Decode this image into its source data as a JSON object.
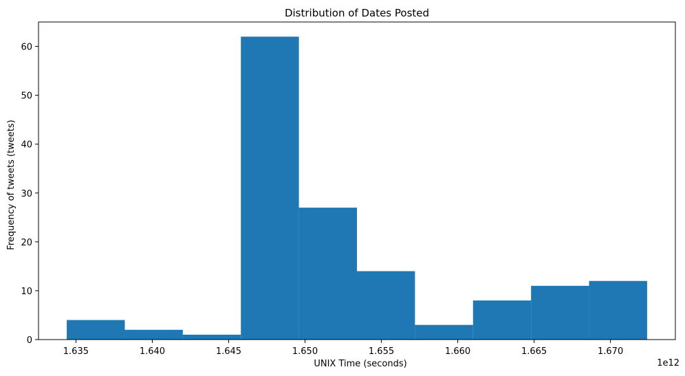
{
  "chart_data": {
    "type": "bar",
    "title": "Distribution of Dates Posted",
    "xlabel": "UNIX Time (seconds)",
    "ylabel": "Frequency of tweets (tweets)",
    "x_offset_label": "1e12",
    "xlim": [
      1.63255,
      1.67425
    ],
    "ylim": [
      0,
      65
    ],
    "grid": false,
    "bar_color": "#1f77b4",
    "bin_edges": [
      1.6344,
      1.6382,
      1.642,
      1.6458,
      1.6496,
      1.6534,
      1.6572,
      1.661,
      1.6648,
      1.6686,
      1.6724
    ],
    "values": [
      4,
      2,
      1,
      62,
      27,
      14,
      3,
      8,
      11,
      12
    ],
    "x_ticks": [
      {
        "value": 1.635,
        "label": "1.635"
      },
      {
        "value": 1.64,
        "label": "1.640"
      },
      {
        "value": 1.645,
        "label": "1.645"
      },
      {
        "value": 1.65,
        "label": "1.650"
      },
      {
        "value": 1.655,
        "label": "1.655"
      },
      {
        "value": 1.66,
        "label": "1.660"
      },
      {
        "value": 1.665,
        "label": "1.665"
      },
      {
        "value": 1.67,
        "label": "1.670"
      }
    ],
    "y_ticks": [
      {
        "value": 0,
        "label": "0"
      },
      {
        "value": 10,
        "label": "10"
      },
      {
        "value": 20,
        "label": "20"
      },
      {
        "value": 30,
        "label": "30"
      },
      {
        "value": 40,
        "label": "40"
      },
      {
        "value": 50,
        "label": "50"
      },
      {
        "value": 60,
        "label": "60"
      }
    ]
  }
}
